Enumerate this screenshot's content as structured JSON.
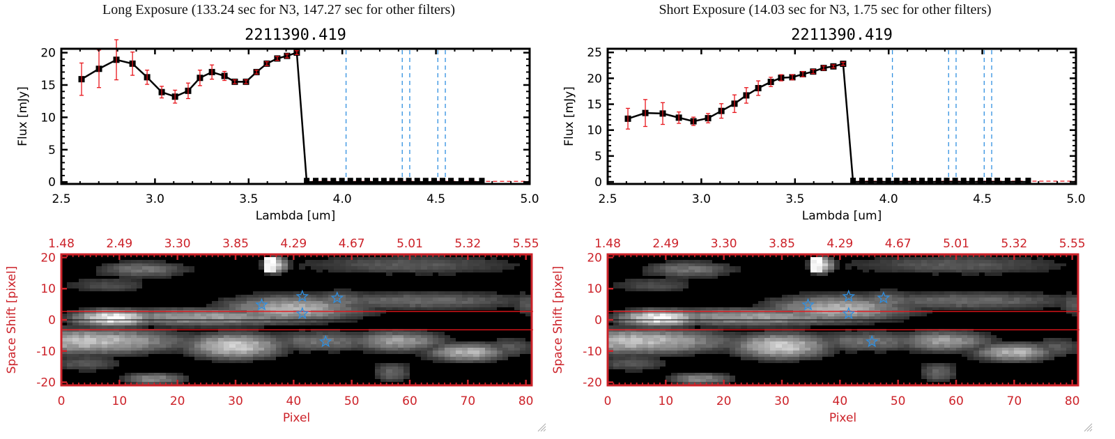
{
  "panels": [
    {
      "id": "long",
      "exposure_title": "Long Exposure (133.24 sec for N3, 147.27 sec for other filters)",
      "chart_data": [
        {
          "type": "line",
          "title": "2211390.419",
          "xlabel": "Lambda [um]",
          "ylabel": "Flux [mJy]",
          "xlim": [
            2.5,
            5.0
          ],
          "ylim": [
            -0.3,
            20.6
          ],
          "xticks": [
            2.5,
            3.0,
            3.5,
            4.0,
            4.5,
            5.0
          ],
          "xtick_labels": [
            "2.5",
            "3.0",
            "3.5",
            "4.0",
            "4.5",
            "5.0"
          ],
          "yticks": [
            0,
            5,
            10,
            15,
            20
          ],
          "ytick_labels": [
            "0",
            "5",
            "10",
            "15",
            "20"
          ],
          "series": [
            {
              "name": "flux",
              "color": "#000000",
              "marker": "square",
              "x": [
                2.608,
                2.701,
                2.794,
                2.88,
                2.958,
                3.036,
                3.107,
                3.177,
                3.24,
                3.304,
                3.371,
                3.426,
                3.486,
                3.542,
                3.597,
                3.653,
                3.705,
                3.757,
                3.81,
                3.858,
                3.905,
                3.952,
                3.998,
                4.043,
                4.088,
                4.133,
                4.178,
                4.222,
                4.266,
                4.31,
                4.355,
                4.4,
                4.445,
                4.49,
                4.535,
                4.58,
                4.635,
                4.69,
                4.745
              ],
              "y": [
                15.9,
                17.5,
                18.9,
                18.3,
                16.2,
                13.9,
                13.2,
                14.1,
                16.1,
                17.0,
                16.4,
                15.5,
                15.5,
                17.0,
                18.3,
                19.1,
                19.5,
                20.0,
                0,
                0,
                0,
                0,
                0,
                0,
                0,
                0,
                0,
                0,
                0,
                0,
                0,
                0,
                0,
                0,
                0,
                0,
                0,
                0,
                0
              ],
              "yerr": [
                2.5,
                2.9,
                3.1,
                1.8,
                1.1,
                0.9,
                1.0,
                1.2,
                1.2,
                1.1,
                0.7,
                0.3,
                0.3,
                0.3,
                0.3,
                0.3,
                0.3,
                0.3,
                0,
                0,
                0,
                0,
                0,
                0,
                0,
                0,
                0,
                0,
                0,
                0,
                0,
                0,
                0,
                0,
                0,
                0,
                0,
                0,
                0
              ]
            }
          ],
          "error_bar_color": "#e8151b",
          "zero_line": {
            "y": 0,
            "color": "#e8151b",
            "style": "dashed"
          },
          "vlines": {
            "x": [
              4.02,
              4.32,
              4.36,
              4.51,
              4.55
            ],
            "color": "#2f8fe0",
            "style": "dashed"
          }
        },
        {
          "type": "heatmap",
          "xlabel": "Pixel",
          "ylabel": "Space Shift [pixel]",
          "xlim": [
            0,
            81
          ],
          "ylim": [
            -21,
            21
          ],
          "xticks": [
            0,
            10,
            20,
            30,
            40,
            50,
            60,
            70,
            80
          ],
          "xtick_labels": [
            "0",
            "10",
            "20",
            "30",
            "40",
            "50",
            "60",
            "70",
            "80"
          ],
          "yticks": [
            -20,
            -10,
            0,
            10,
            20
          ],
          "ytick_labels": [
            "-20",
            "-10",
            "0",
            "10",
            "20"
          ],
          "top_axis_label_values": [
            "1.48",
            "2.49",
            "3.30",
            "3.85",
            "4.29",
            "4.67",
            "5.01",
            "5.32",
            "5.55"
          ],
          "axis_color": "#cc2229",
          "aperture_lines": {
            "y": [
              2.7,
              -3.2
            ],
            "color": "#e8151b"
          },
          "center_line": {
            "y": 0,
            "color": "#000000"
          },
          "stars": {
            "color": "#2f8fe0",
            "points": [
              [
                34.5,
                4.8
              ],
              [
                41.5,
                7.5
              ],
              [
                47.5,
                7.0
              ],
              [
                41.5,
                2.0
              ],
              [
                45.5,
                -7.0
              ]
            ]
          },
          "blobs": [
            {
              "x": 9,
              "y": 0.5,
              "sx": 5,
              "sy": 2.0,
              "v": 1.0
            },
            {
              "x": 25,
              "y": 0.8,
              "sx": 16,
              "sy": 2.2,
              "v": 0.62
            },
            {
              "x": 40,
              "y": 3.5,
              "sx": 9,
              "sy": 3.2,
              "v": 0.7
            },
            {
              "x": 48,
              "y": 6,
              "sx": 4,
              "sy": 2.5,
              "v": 0.45
            },
            {
              "x": 62,
              "y": 6,
              "sx": 15,
              "sy": 2.2,
              "v": 0.42
            },
            {
              "x": 80,
              "y": 5,
              "sx": 1.5,
              "sy": 3,
              "v": 0.35
            },
            {
              "x": 5,
              "y": -7,
              "sx": 12,
              "sy": 3.0,
              "v": 0.75
            },
            {
              "x": 15,
              "y": -7,
              "sx": 8,
              "sy": 2.5,
              "v": 0.45
            },
            {
              "x": 30,
              "y": -8.5,
              "sx": 6,
              "sy": 3.0,
              "v": 0.82
            },
            {
              "x": 45,
              "y": -7,
              "sx": 8,
              "sy": 2.5,
              "v": 0.45
            },
            {
              "x": 58,
              "y": -7,
              "sx": 6,
              "sy": 2.5,
              "v": 0.62
            },
            {
              "x": 70,
              "y": -10.5,
              "sx": 5,
              "sy": 2.2,
              "v": 0.72
            },
            {
              "x": 77,
              "y": -9,
              "sx": 4,
              "sy": 2.5,
              "v": 0.35
            },
            {
              "x": 14,
              "y": 16,
              "sx": 6,
              "sy": 2.0,
              "v": 0.45
            },
            {
              "x": 8,
              "y": 11,
              "sx": 6,
              "sy": 2.0,
              "v": 0.3
            },
            {
              "x": 37,
              "y": 17.5,
              "sx": 1.5,
              "sy": 2.0,
              "v": 0.85
            },
            {
              "x": 60,
              "y": 17.5,
              "sx": 15,
              "sy": 2.5,
              "v": 0.35
            },
            {
              "x": 16,
              "y": -19,
              "sx": 4,
              "sy": 1.5,
              "v": 0.55
            },
            {
              "x": 57,
              "y": -17,
              "sx": 2.5,
              "sy": 2.5,
              "v": 0.4
            },
            {
              "x": 4,
              "y": -14,
              "sx": 5,
              "sy": 2.0,
              "v": 0.35
            }
          ],
          "saturated_block": {
            "x0": 35,
            "x1": 36,
            "y0": 15.5,
            "y1": 20,
            "v": 1.0
          }
        }
      ]
    },
    {
      "id": "short",
      "exposure_title": "Short Exposure (14.03 sec for N3, 1.75 sec for other filters)",
      "chart_data": [
        {
          "type": "line",
          "title": "2211390.419",
          "xlabel": "Lambda [um]",
          "ylabel": "Flux [mJy]",
          "xlim": [
            2.5,
            5.0
          ],
          "ylim": [
            -0.4,
            25.7
          ],
          "xticks": [
            2.5,
            3.0,
            3.5,
            4.0,
            4.5,
            5.0
          ],
          "xtick_labels": [
            "2.5",
            "3.0",
            "3.5",
            "4.0",
            "4.5",
            "5.0"
          ],
          "yticks": [
            0,
            5,
            10,
            15,
            20,
            25
          ],
          "ytick_labels": [
            "0",
            "5",
            "10",
            "15",
            "20",
            "25"
          ],
          "series": [
            {
              "name": "flux",
              "color": "#000000",
              "marker": "square",
              "x": [
                2.608,
                2.701,
                2.794,
                2.88,
                2.958,
                3.036,
                3.107,
                3.177,
                3.24,
                3.304,
                3.371,
                3.426,
                3.486,
                3.542,
                3.597,
                3.653,
                3.705,
                3.757,
                3.81,
                3.858,
                3.905,
                3.952,
                3.998,
                4.043,
                4.088,
                4.133,
                4.178,
                4.222,
                4.266,
                4.31,
                4.355,
                4.4,
                4.445,
                4.49,
                4.535,
                4.58,
                4.635,
                4.69,
                4.745
              ],
              "y": [
                12.2,
                13.3,
                13.2,
                12.4,
                11.7,
                12.3,
                13.7,
                15.1,
                16.7,
                18.1,
                19.3,
                20.1,
                20.2,
                20.8,
                21.3,
                22.0,
                22.3,
                22.8,
                0,
                0,
                0,
                0,
                0,
                0,
                0,
                0,
                0,
                0,
                0,
                0,
                0,
                0,
                0,
                0,
                0,
                0,
                0,
                0,
                0
              ],
              "yerr": [
                2.0,
                2.6,
                2.1,
                1.1,
                0.8,
                0.9,
                1.4,
                1.7,
                1.5,
                1.4,
                0.9,
                0.6,
                0.5,
                0.5,
                0.4,
                0.4,
                0.3,
                0.3,
                0,
                0,
                0,
                0,
                0,
                0,
                0,
                0,
                0,
                0,
                0,
                0,
                0,
                0,
                0,
                0,
                0,
                0,
                0,
                0,
                0
              ]
            }
          ],
          "error_bar_color": "#e8151b",
          "zero_line": {
            "y": 0,
            "color": "#e8151b",
            "style": "dashed"
          },
          "vlines": {
            "x": [
              4.02,
              4.32,
              4.36,
              4.51,
              4.55
            ],
            "color": "#2f8fe0",
            "style": "dashed"
          }
        },
        {
          "type": "heatmap",
          "xlabel": "Pixel",
          "ylabel": "Space Shift [pixel]",
          "xlim": [
            0,
            81
          ],
          "ylim": [
            -21,
            21
          ],
          "xticks": [
            0,
            10,
            20,
            30,
            40,
            50,
            60,
            70,
            80
          ],
          "xtick_labels": [
            "0",
            "10",
            "20",
            "30",
            "40",
            "50",
            "60",
            "70",
            "80"
          ],
          "yticks": [
            -20,
            -10,
            0,
            10,
            20
          ],
          "ytick_labels": [
            "-20",
            "-10",
            "0",
            "10",
            "20"
          ],
          "top_axis_label_values": [
            "1.48",
            "2.49",
            "3.30",
            "3.85",
            "4.29",
            "4.67",
            "5.01",
            "5.32",
            "5.55"
          ],
          "axis_color": "#cc2229",
          "aperture_lines": {
            "y": [
              2.7,
              -3.2
            ],
            "color": "#e8151b"
          },
          "center_line": {
            "y": 0,
            "color": "#000000"
          },
          "stars": {
            "color": "#2f8fe0",
            "points": [
              [
                34.5,
                4.8
              ],
              [
                41.5,
                7.5
              ],
              [
                47.5,
                7.0
              ],
              [
                41.5,
                2.0
              ],
              [
                45.5,
                -7.0
              ]
            ]
          },
          "blobs": "same-as-long",
          "saturated_block": "same-as-long"
        }
      ]
    }
  ]
}
